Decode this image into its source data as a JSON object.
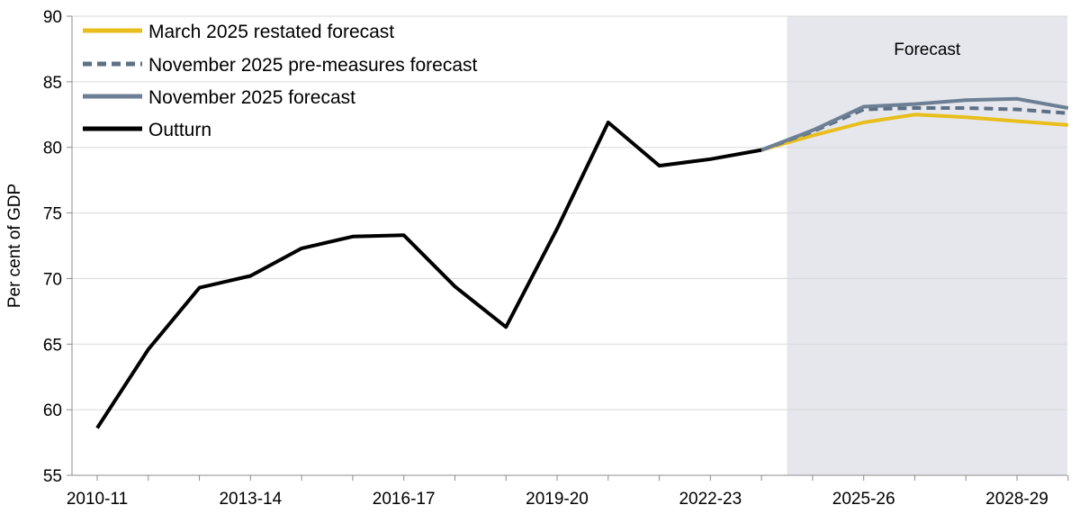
{
  "chart_data": {
    "type": "line",
    "title": "",
    "xlabel": "",
    "ylabel": "Per cent of GDP",
    "ylim": [
      55,
      90
    ],
    "yticks": [
      55,
      60,
      65,
      70,
      75,
      80,
      85,
      90
    ],
    "categories": [
      "2010-11",
      "2011-12",
      "2012-13",
      "2013-14",
      "2014-15",
      "2015-16",
      "2016-17",
      "2017-18",
      "2018-19",
      "2019-20",
      "2020-21",
      "2021-22",
      "2022-23",
      "2023-24",
      "2024-25",
      "2025-26",
      "2026-27",
      "2027-28",
      "2028-29",
      "2029-30"
    ],
    "xtick_labels": [
      "2010-11",
      "2013-14",
      "2016-17",
      "2019-20",
      "2022-23",
      "2025-26",
      "2028-29"
    ],
    "forecast_start": "2024-25",
    "forecast_label": "Forecast",
    "grid": true,
    "legend_position": "top-left",
    "series": [
      {
        "name": "March 2025 restated forecast",
        "color": "#E8BE1C",
        "style": "solid",
        "x": [
          "2023-24",
          "2024-25",
          "2025-26",
          "2026-27",
          "2027-28",
          "2028-29",
          "2029-30"
        ],
        "values": [
          79.8,
          80.9,
          81.9,
          82.5,
          82.3,
          82.0,
          81.7
        ]
      },
      {
        "name": "November 2025 pre-measures forecast",
        "color": "#5E7086",
        "style": "dashed",
        "x": [
          "2023-24",
          "2024-25",
          "2025-26",
          "2026-27",
          "2027-28",
          "2028-29",
          "2029-30"
        ],
        "values": [
          79.8,
          81.2,
          82.9,
          83.0,
          83.0,
          82.9,
          82.6
        ]
      },
      {
        "name": "November 2025 forecast",
        "color": "#6D7F95",
        "style": "solid",
        "x": [
          "2023-24",
          "2024-25",
          "2025-26",
          "2026-27",
          "2027-28",
          "2028-29",
          "2029-30"
        ],
        "values": [
          79.8,
          81.3,
          83.1,
          83.3,
          83.6,
          83.7,
          83.0
        ]
      },
      {
        "name": "Outturn",
        "color": "#000000",
        "style": "solid",
        "x": [
          "2010-11",
          "2011-12",
          "2012-13",
          "2013-14",
          "2014-15",
          "2015-16",
          "2016-17",
          "2017-18",
          "2018-19",
          "2019-20",
          "2020-21",
          "2021-22",
          "2022-23",
          "2023-24"
        ],
        "values": [
          58.6,
          64.6,
          69.3,
          70.2,
          72.3,
          73.2,
          73.3,
          69.4,
          66.3,
          73.8,
          81.9,
          78.6,
          79.1,
          79.8
        ]
      }
    ]
  }
}
